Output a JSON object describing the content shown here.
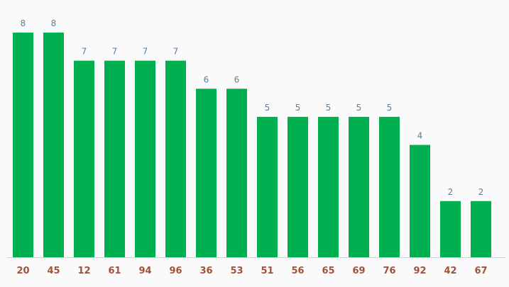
{
  "chart_data": {
    "type": "bar",
    "categories": [
      "20",
      "45",
      "12",
      "61",
      "94",
      "96",
      "36",
      "53",
      "51",
      "56",
      "65",
      "69",
      "76",
      "92",
      "42",
      "67"
    ],
    "values": [
      8,
      8,
      7,
      7,
      7,
      7,
      6,
      6,
      5,
      5,
      5,
      5,
      5,
      4,
      2,
      2
    ],
    "color": "#00b050"
  }
}
